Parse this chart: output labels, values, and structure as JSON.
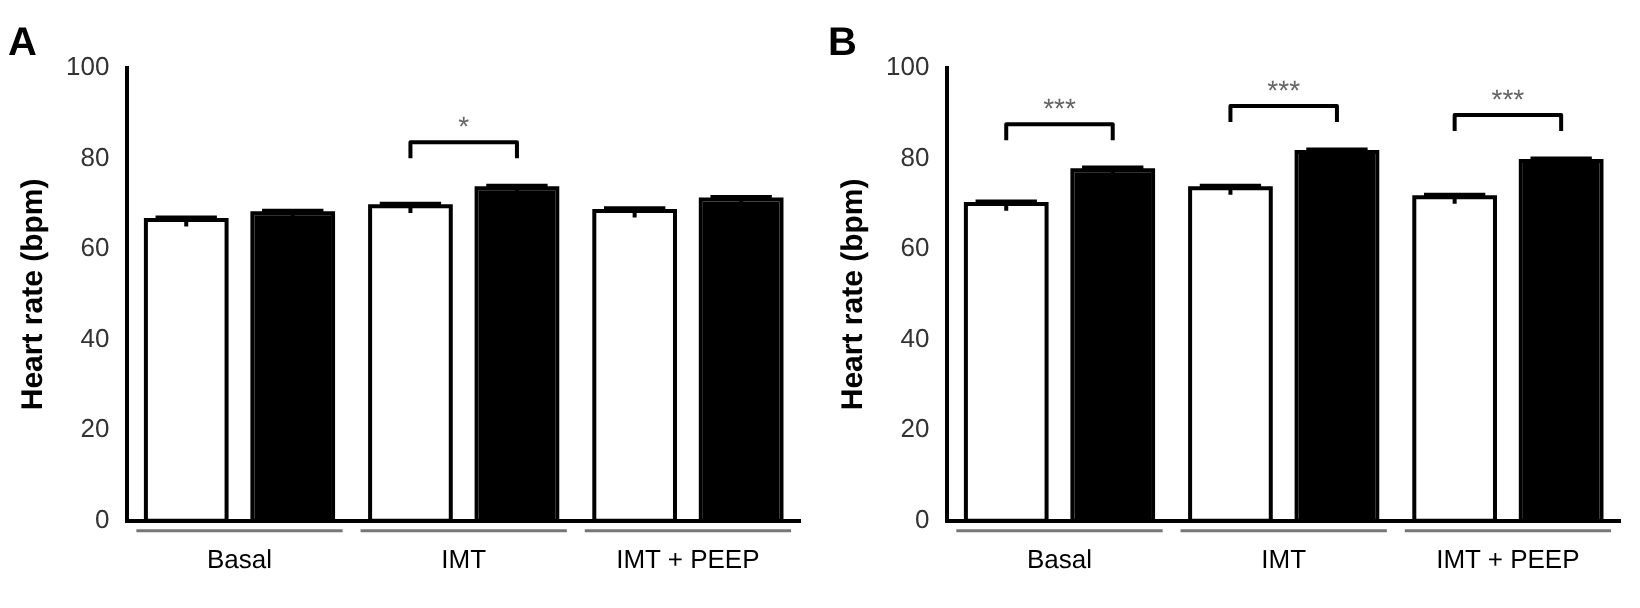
{
  "chart_data": [
    {
      "type": "bar",
      "title": "A",
      "ylabel": "Heart rate (bpm)",
      "categories": [
        "Basal",
        "IMT",
        "IMT + PEEP"
      ],
      "series": [
        {
          "color": "#ffffff",
          "values": [
            66,
            69,
            68
          ],
          "errors": [
            1,
            1,
            1
          ]
        },
        {
          "color": "#000000",
          "values": [
            67.5,
            73,
            70.5
          ],
          "errors": [
            1,
            1,
            1
          ]
        }
      ],
      "ylim": [
        0,
        100
      ],
      "yticks": [
        0,
        20,
        40,
        60,
        80,
        100
      ],
      "grid": false,
      "legend": false,
      "annotations": [
        "*"
      ]
    },
    {
      "type": "bar",
      "title": "B",
      "ylabel": "Heart rate (bpm)",
      "categories": [
        "Basal",
        "IMT",
        "IMT + PEEP"
      ],
      "series": [
        {
          "color": "#ffffff",
          "values": [
            69.5,
            73,
            71
          ],
          "errors": [
            1,
            1,
            1
          ]
        },
        {
          "color": "#000000",
          "values": [
            77,
            81,
            79
          ],
          "errors": [
            1,
            1,
            1
          ]
        }
      ],
      "ylim": [
        0,
        100
      ],
      "yticks": [
        0,
        20,
        40,
        60,
        80,
        100
      ],
      "grid": false,
      "legend": false,
      "annotations": [
        "***",
        "***",
        "***"
      ]
    }
  ]
}
